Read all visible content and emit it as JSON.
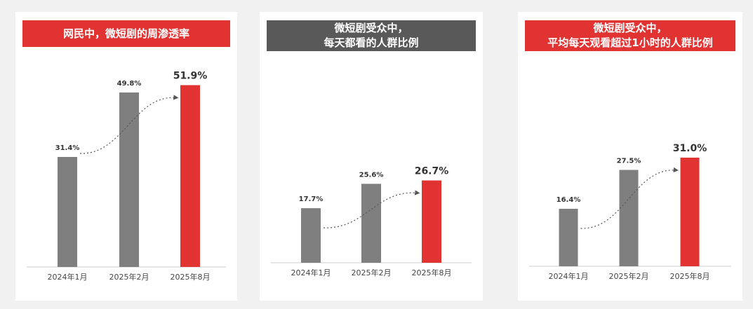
{
  "chart_data": [
    {
      "type": "bar",
      "title": "网民中，微短剧的周渗透率",
      "title_lines": [
        "网民中，微短剧的周渗透率"
      ],
      "title_color": "#e23333",
      "categories": [
        "2024年1月",
        "2025年2月",
        "2025年8月"
      ],
      "values": [
        31.4,
        49.8,
        51.9
      ],
      "value_labels": [
        "31.4%",
        "49.8%",
        "51.9%"
      ],
      "bar_colors": [
        "#7f7f7f",
        "#7f7f7f",
        "#e23333"
      ],
      "ylim": [
        0,
        60
      ]
    },
    {
      "type": "bar",
      "title": "微短剧受众中，每天都看的人群比例",
      "title_lines": [
        "微短剧受众中，",
        "每天都看的人群比例"
      ],
      "title_color": "#595959",
      "categories": [
        "2024年1月",
        "2025年2月",
        "2025年8月"
      ],
      "values": [
        17.7,
        25.6,
        26.7
      ],
      "value_labels": [
        "17.7%",
        "25.6%",
        "26.7%"
      ],
      "bar_colors": [
        "#7f7f7f",
        "#7f7f7f",
        "#e23333"
      ],
      "ylim": [
        0,
        60
      ]
    },
    {
      "type": "bar",
      "title": "微短剧受众中，平均每天观看超过1小时的人群比例",
      "title_lines": [
        "微短剧受众中，",
        "平均每天观看超过1小时的人群比例"
      ],
      "title_color": "#e23333",
      "categories": [
        "2024年1月",
        "2025年2月",
        "2025年8月"
      ],
      "values": [
        16.4,
        27.5,
        31.0
      ],
      "value_labels": [
        "16.4%",
        "27.5%",
        "31.0%"
      ],
      "bar_colors": [
        "#7f7f7f",
        "#7f7f7f",
        "#e23333"
      ],
      "ylim": [
        0,
        60
      ]
    }
  ]
}
